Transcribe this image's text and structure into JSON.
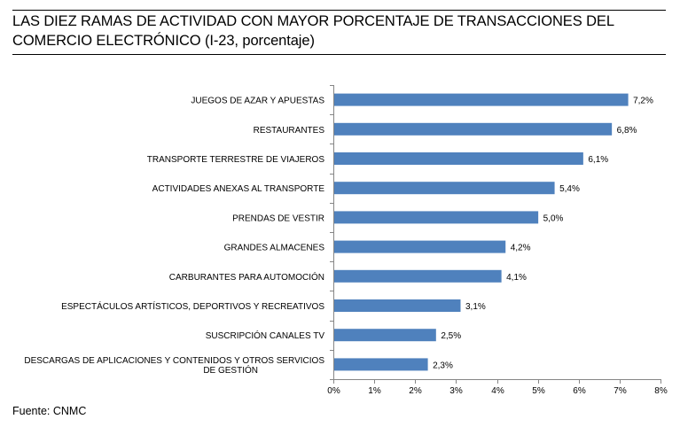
{
  "header": {
    "title_line1": "LAS DIEZ RAMAS DE ACTIVIDAD CON MAYOR PORCENTAJE DE TRANSACCIONES DEL",
    "title_line2": "COMERCIO ELECTRÓNICO (I-23, porcentaje)"
  },
  "footer": {
    "source": "Fuente: CNMC"
  },
  "chart_data": {
    "type": "bar",
    "orientation": "horizontal",
    "title": "LAS DIEZ RAMAS DE ACTIVIDAD CON MAYOR PORCENTAJE DE TRANSACCIONES DEL COMERCIO ELECTRÓNICO (I-23, porcentaje)",
    "categories": [
      "JUEGOS DE AZAR Y APUESTAS",
      "RESTAURANTES",
      "TRANSPORTE TERRESTRE DE VIAJEROS",
      "ACTIVIDADES ANEXAS AL TRANSPORTE",
      "PRENDAS DE VESTIR",
      "GRANDES ALMACENES",
      "CARBURANTES PARA AUTOMOCIÓN",
      "ESPECTÁCULOS ARTÍSTICOS, DEPORTIVOS Y RECREATIVOS",
      "SUSCRIPCIÓN CANALES TV",
      "DESCARGAS DE APLICACIONES Y CONTENIDOS Y OTROS SERVICIOS DE GESTIÓN"
    ],
    "category_lines": [
      [
        "JUEGOS DE AZAR Y APUESTAS"
      ],
      [
        "RESTAURANTES"
      ],
      [
        "TRANSPORTE TERRESTRE DE VIAJEROS"
      ],
      [
        "ACTIVIDADES ANEXAS AL TRANSPORTE"
      ],
      [
        "PRENDAS DE VESTIR"
      ],
      [
        "GRANDES ALMACENES"
      ],
      [
        "CARBURANTES PARA AUTOMOCIÓN"
      ],
      [
        "ESPECTÁCULOS ARTÍSTICOS, DEPORTIVOS Y RECREATIVOS"
      ],
      [
        "SUSCRIPCIÓN CANALES TV"
      ],
      [
        "DESCARGAS DE APLICACIONES Y CONTENIDOS Y OTROS SERVICIOS",
        "DE GESTIÓN"
      ]
    ],
    "values": [
      7.2,
      6.8,
      6.1,
      5.4,
      5.0,
      4.2,
      4.1,
      3.1,
      2.5,
      2.3
    ],
    "value_labels": [
      "7,2%",
      "6,8%",
      "6,1%",
      "5,4%",
      "5,0%",
      "4,2%",
      "4,1%",
      "3,1%",
      "2,5%",
      "2,3%"
    ],
    "xlim": [
      0,
      8
    ],
    "x_ticks": [
      0,
      1,
      2,
      3,
      4,
      5,
      6,
      7,
      8
    ],
    "x_tick_labels": [
      "0%",
      "1%",
      "2%",
      "3%",
      "4%",
      "5%",
      "6%",
      "7%",
      "8%"
    ],
    "bar_color": "#4f81bd",
    "grid": false,
    "legend": "none"
  }
}
